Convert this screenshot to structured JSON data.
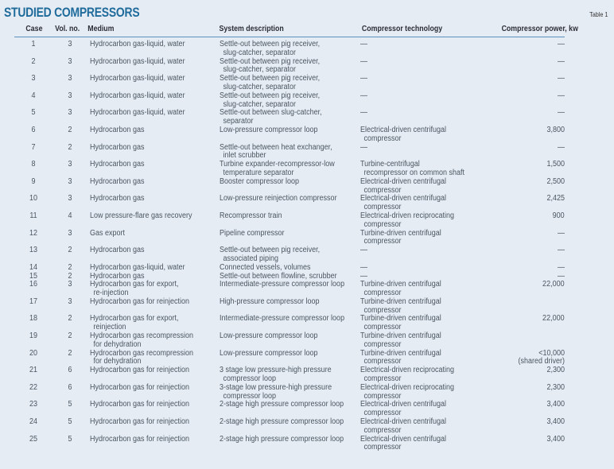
{
  "title": "STUDIED COMPRESSORS",
  "table_label": "Table 1",
  "headers": {
    "case": "Case",
    "vol": "Vol. no.",
    "medium": "Medium",
    "system": "System description",
    "technology": "Compressor technology",
    "power": "Compressor power, kw"
  },
  "rows": [
    {
      "case": "1",
      "vol": "3",
      "medium": [
        "Hydrocarbon gas-liquid, water"
      ],
      "system": [
        "Settle-out between pig receiver,",
        "slug-catcher,  separator"
      ],
      "technology": [
        "—"
      ],
      "power": [
        "—"
      ]
    },
    {
      "case": "2",
      "vol": "3",
      "medium": [
        "Hydrocarbon gas-liquid, water"
      ],
      "system": [
        "Settle-out between pig receiver,",
        "slug-catcher, separator"
      ],
      "technology": [
        "—"
      ],
      "power": [
        "—"
      ]
    },
    {
      "case": "3",
      "vol": "3",
      "medium": [
        "Hydrocarbon  gas-liquid, water"
      ],
      "system": [
        "Settle-out between pig receiver,",
        "slug-catcher, separator"
      ],
      "technology": [
        "—"
      ],
      "power": [
        "—"
      ]
    },
    {
      "case": "4",
      "vol": "3",
      "medium": [
        "Hydrocarbon gas-liquid, water"
      ],
      "system": [
        "Settle-out between pig receiver,",
        "slug-catcher,  separator"
      ],
      "technology": [
        "—"
      ],
      "power": [
        "—"
      ]
    },
    {
      "case": "5",
      "vol": "3",
      "medium": [
        "Hydrocarbon gas-liquid, water"
      ],
      "system": [
        "Settle-out between  slug-catcher,",
        "separator"
      ],
      "technology": [
        "—"
      ],
      "power": [
        "—"
      ]
    },
    {
      "case": "6",
      "vol": "2",
      "medium": [
        "Hydrocarbon gas"
      ],
      "system": [
        "Low-pressure compressor loop"
      ],
      "technology": [
        "Electrical-driven centrifugal",
        "compressor"
      ],
      "power": [
        "3,800"
      ]
    },
    {
      "case": "7",
      "vol": "2",
      "medium": [
        "Hydrocarbon gas"
      ],
      "system": [
        "Settle-out between heat exchanger,",
        "inlet scrubber"
      ],
      "technology": [
        "—"
      ],
      "power": [
        "—"
      ]
    },
    {
      "case": "8",
      "vol": "3",
      "medium": [
        "Hydrocarbon gas"
      ],
      "system": [
        "Turbine expander-recompressor-low",
        "temperature separator"
      ],
      "technology": [
        "Turbine-centrifugal",
        "recompressor on common shaft"
      ],
      "power": [
        "1,500"
      ]
    },
    {
      "case": "9",
      "vol": "3",
      "medium": [
        "Hydrocarbon gas"
      ],
      "system": [
        "Booster compressor loop"
      ],
      "technology": [
        "Electrical-driven centrifugal",
        "compressor"
      ],
      "power": [
        "2,500"
      ]
    },
    {
      "case": "10",
      "vol": "3",
      "medium": [
        "Hydrocarbon gas"
      ],
      "system": [
        "Low-pressure reinjection compressor"
      ],
      "technology": [
        "Electrical-driven centrifugal",
        "compressor"
      ],
      "power": [
        "2,425"
      ]
    },
    {
      "case": "11",
      "vol": "4",
      "medium": [
        "Low pressure-flare gas recovery"
      ],
      "system": [
        "Recompressor train"
      ],
      "technology": [
        "Electrical-driven reciprocating",
        "compressor"
      ],
      "power": [
        "900"
      ]
    },
    {
      "case": "12",
      "vol": "3",
      "medium": [
        "Gas export"
      ],
      "system": [
        "Pipeline compressor"
      ],
      "technology": [
        "Turbine-driven centrifugal",
        "compressor"
      ],
      "power": [
        "—"
      ]
    },
    {
      "case": "13",
      "vol": "2",
      "medium": [
        "Hydrocarbon gas"
      ],
      "system": [
        "Settle-out between pig receiver,",
        "associated piping"
      ],
      "technology": [
        "—"
      ],
      "power": [
        "—"
      ]
    },
    {
      "case": "14",
      "vol": "2",
      "medium": [
        "Hydrocarbon gas-liquid, water"
      ],
      "system": [
        "Connected vessels, volumes"
      ],
      "technology": [
        "—"
      ],
      "power": [
        "—"
      ]
    },
    {
      "case": "15",
      "vol": "2",
      "medium": [
        "Hydrocarbon gas"
      ],
      "system": [
        "Settle-out between flowline, scrubber"
      ],
      "technology": [
        "—"
      ],
      "power": [
        "—"
      ]
    },
    {
      "case": "16",
      "vol": "3",
      "medium": [
        "Hydrocarbon gas for export,",
        "re-injection"
      ],
      "system": [
        "Intermediate-pressure compressor loop"
      ],
      "technology": [
        "Turbine-driven centrifugal",
        "compressor"
      ],
      "power": [
        "22,000"
      ]
    },
    {
      "case": "17",
      "vol": "3",
      "medium": [
        "Hydrocarbon gas for reinjection"
      ],
      "system": [
        "High-pressure compressor loop"
      ],
      "technology": [
        "Turbine-driven centrifugal",
        "compressor"
      ],
      "power": [
        ""
      ]
    },
    {
      "case": "18",
      "vol": "2",
      "medium": [
        "Hydrocarbon gas for export,",
        "reinjection"
      ],
      "system": [
        "Intermediate-pressure compressor loop"
      ],
      "technology": [
        "Turbine-driven centrifugal",
        "compressor"
      ],
      "power": [
        "22,000"
      ]
    },
    {
      "case": "19",
      "vol": "2",
      "medium": [
        "Hydrocarbon gas recompression",
        "for dehydration"
      ],
      "system": [
        "Low-pressure compressor loop"
      ],
      "technology": [
        "Turbine-driven centrifugal",
        "compressor"
      ],
      "power": [
        ""
      ]
    },
    {
      "case": "20",
      "vol": "2",
      "medium": [
        "Hydrocarbon gas recompression",
        "for dehydration"
      ],
      "system": [
        "Low-pressure compressor loop"
      ],
      "technology": [
        "Turbine-driven centrifugal",
        "compressor"
      ],
      "power": [
        "<10,000",
        "(shared driver)"
      ]
    },
    {
      "case": "21",
      "vol": "6",
      "medium": [
        "Hydrocarbon gas for reinjection"
      ],
      "system": [
        "3 stage low pressure-high pressure",
        "compressor loop"
      ],
      "technology": [
        "Electrical-driven reciprocating",
        "compressor"
      ],
      "power": [
        "2,300"
      ]
    },
    {
      "case": "22",
      "vol": "6",
      "medium": [
        "Hydrocarbon gas for reinjection"
      ],
      "system": [
        "3-stage low pressure-high pressure",
        "compressor loop"
      ],
      "technology": [
        "Electrical-driven reciprocating",
        "compressor"
      ],
      "power": [
        "2,300"
      ]
    },
    {
      "case": "23",
      "vol": "5",
      "medium": [
        "Hydrocarbon gas for reinjection"
      ],
      "system": [
        "2-stage high pressure compressor loop"
      ],
      "technology": [
        "Electrical-driven centrifugal",
        "compressor"
      ],
      "power": [
        "3,400"
      ]
    },
    {
      "case": "24",
      "vol": "5",
      "medium": [
        "Hydrocarbon gas for reinjection"
      ],
      "system": [
        "2-stage high pressure compressor loop"
      ],
      "technology": [
        "Electrical-driven centrifugal",
        "compressor"
      ],
      "power": [
        "3,400"
      ]
    },
    {
      "case": "25",
      "vol": "5",
      "medium": [
        "Hydrocarbon gas for reinjection"
      ],
      "system": [
        "2-stage high pressure compressor loop"
      ],
      "technology": [
        "Electrical-driven centrifugal",
        "compressor"
      ],
      "power": [
        "3,400"
      ]
    }
  ]
}
